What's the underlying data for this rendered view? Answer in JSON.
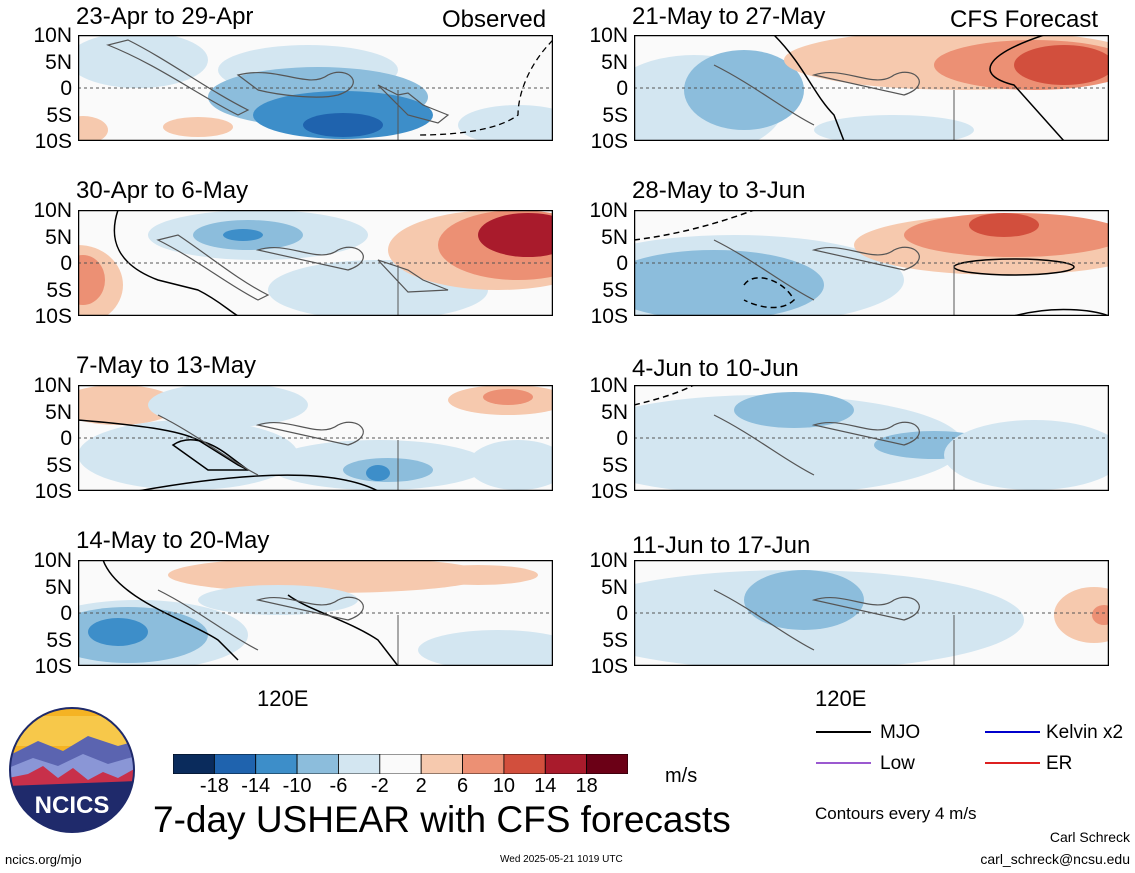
{
  "panels": [
    {
      "id": "obs1",
      "title": "23-Apr to 29-Apr",
      "tag": "Observed"
    },
    {
      "id": "obs2",
      "title": "30-Apr to 6-May"
    },
    {
      "id": "obs3",
      "title": "7-May to 13-May"
    },
    {
      "id": "obs4",
      "title": "14-May to 20-May"
    },
    {
      "id": "fc1",
      "title": "21-May to 27-May",
      "tag": "CFS Forecast"
    },
    {
      "id": "fc2",
      "title": "28-May to 3-Jun"
    },
    {
      "id": "fc3",
      "title": "4-Jun to 10-Jun"
    },
    {
      "id": "fc4",
      "title": "11-Jun to 17-Jun"
    }
  ],
  "axes": {
    "lat_labels": [
      "10N",
      "5N",
      "0",
      "5S",
      "10S"
    ],
    "lon_label": "120E"
  },
  "colorbar": {
    "labels": [
      "-18",
      "-14",
      "-10",
      "-6",
      "-2",
      "2",
      "6",
      "10",
      "14",
      "18"
    ],
    "unit": "m/s",
    "colors": [
      "#0a2b5c",
      "#1f63ae",
      "#3d8ec9",
      "#8cbddc",
      "#d3e6f1",
      "#fafafa",
      "#f6c9ae",
      "#ec9074",
      "#d24f3d",
      "#a91b2c",
      "#6b0016"
    ]
  },
  "legend": {
    "items": [
      {
        "label": "MJO",
        "color": "#000000"
      },
      {
        "label": "Kelvin x2",
        "color": "#0000cc"
      },
      {
        "label": "Low",
        "color": "#9b59d0"
      },
      {
        "label": "ER",
        "color": "#dd2020"
      }
    ],
    "contour_note": "Contours every 4 m/s"
  },
  "logo": {
    "text": "NCICS"
  },
  "main_title": "7-day USHEAR with CFS forecasts",
  "footer": {
    "left": "ncics.org/mjo",
    "center": "Wed 2025-05-21 1019 UTC",
    "author": "Carl Schreck",
    "email": "carl_schreck@ncsu.edu"
  }
}
